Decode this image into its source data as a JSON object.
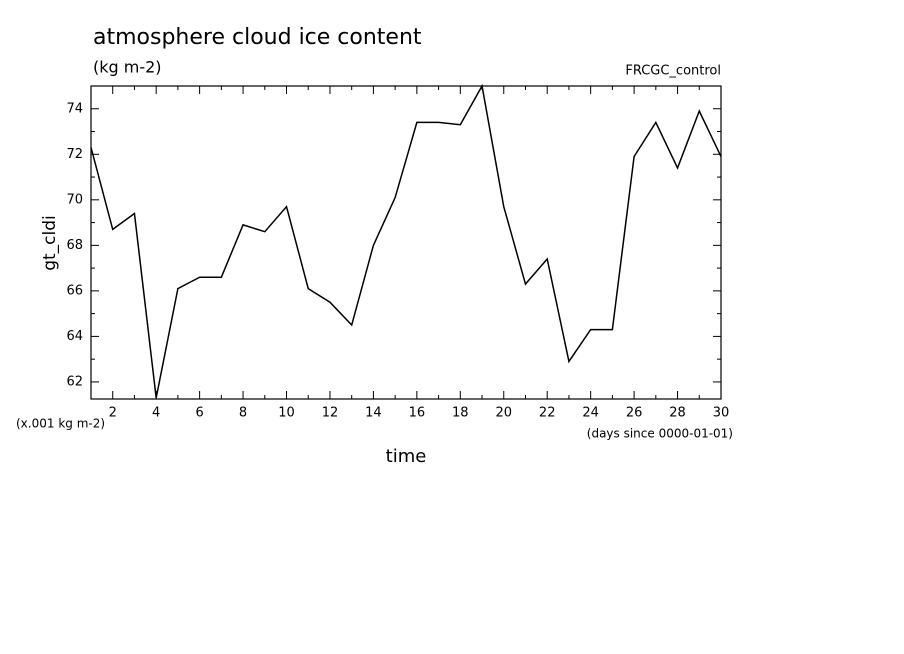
{
  "chart_data": {
    "type": "line",
    "title": "atmosphere cloud ice content",
    "subtitle": "(kg m-2)",
    "annotation": "FRCGC_control",
    "y_label": "gt_cldi",
    "y_unit_label": "(x.001 kg m-2)",
    "x_label": "time",
    "x_unit_label": "(days since 0000-01-01)",
    "x": [
      1,
      2,
      3,
      4,
      5,
      6,
      7,
      8,
      9,
      10,
      11,
      12,
      13,
      14,
      15,
      16,
      17,
      18,
      19,
      20,
      21,
      22,
      23,
      24,
      25,
      26,
      27,
      28,
      29,
      30
    ],
    "series": [
      {
        "color": "#000000",
        "values": [
          72.3,
          68.7,
          69.4,
          61.3,
          66.1,
          66.6,
          66.6,
          68.9,
          68.6,
          69.7,
          66.1,
          65.5,
          64.5,
          68.0,
          70.1,
          73.4,
          73.4,
          73.3,
          75.0,
          69.7,
          66.3,
          67.4,
          62.9,
          64.3,
          64.3,
          71.9,
          73.4,
          71.4,
          73.9,
          71.9
        ]
      }
    ],
    "xlim": [
      1,
      30
    ],
    "xticks": [
      2,
      4,
      6,
      8,
      10,
      12,
      14,
      16,
      18,
      20,
      22,
      24,
      26,
      28,
      30
    ],
    "x_minor_ticks": [
      1,
      3,
      5,
      7,
      9,
      11,
      13,
      15,
      17,
      19,
      21,
      23,
      25,
      27,
      29
    ],
    "ylim": [
      61.25,
      75
    ],
    "yticks": [
      62,
      64,
      66,
      68,
      70,
      72,
      74
    ],
    "y_minor_ticks": [
      63,
      65,
      67,
      69,
      71,
      73,
      75
    ],
    "grid": false
  }
}
